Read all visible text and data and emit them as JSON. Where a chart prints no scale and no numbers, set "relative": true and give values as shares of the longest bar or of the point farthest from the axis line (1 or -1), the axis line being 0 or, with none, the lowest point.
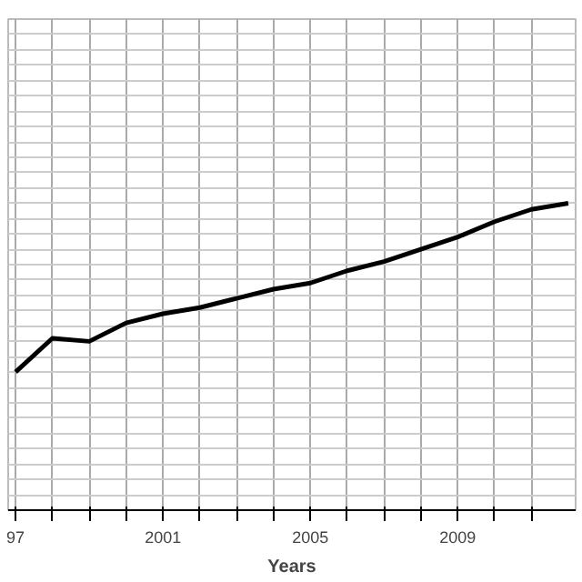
{
  "chart_data": {
    "type": "line",
    "xlabel": "Years",
    "relative": true,
    "x": [
      1997,
      1998,
      1999,
      2000,
      2001,
      2002,
      2003,
      2004,
      2005,
      2006,
      2007,
      2008,
      2009,
      2010,
      2011,
      2012
    ],
    "series": [
      {
        "color": "#000000",
        "values": [
          0.45,
          0.56,
          0.55,
          0.61,
          0.64,
          0.66,
          0.69,
          0.72,
          0.74,
          0.78,
          0.81,
          0.85,
          0.89,
          0.94,
          0.98,
          1.0
        ]
      }
    ],
    "xlim": [
      1996.8,
      2012.2
    ],
    "xticks": [
      {
        "value": 1997,
        "label": "97"
      },
      {
        "value": 1998,
        "label": null
      },
      {
        "value": 1999,
        "label": null
      },
      {
        "value": 2000,
        "label": null
      },
      2001,
      {
        "value": 2002,
        "label": null
      },
      {
        "value": 2003,
        "label": null
      },
      {
        "value": 2004,
        "label": null
      },
      2005,
      {
        "value": 2006,
        "label": null
      },
      {
        "value": 2007,
        "label": null
      },
      {
        "value": 2008,
        "label": null
      },
      2009,
      {
        "value": 2010,
        "label": null
      },
      {
        "value": 2011,
        "label": null
      }
    ],
    "grid": true,
    "line_style": "solid"
  }
}
